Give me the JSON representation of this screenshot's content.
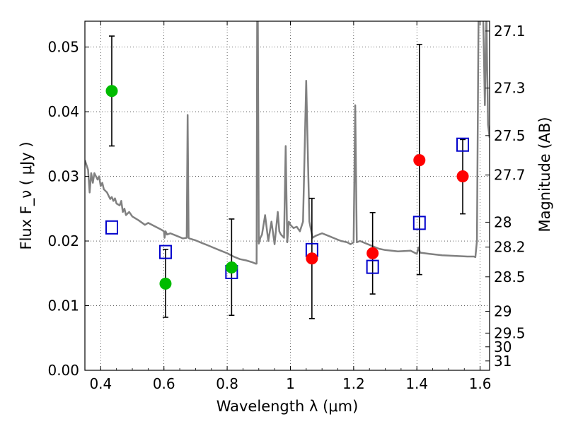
{
  "chart_data": {
    "type": "scatter",
    "xlabel": "Wavelength  λ (μm)",
    "ylabel": "Flux  F_ν  ( μJy )",
    "ylabel_right": "Magnitude (AB)",
    "xlim": [
      0.35,
      1.63
    ],
    "ylim": [
      0.0,
      0.054
    ],
    "grid": true,
    "x_ticks": [
      0.4,
      0.6,
      0.8,
      1.0,
      1.2,
      1.4,
      1.6
    ],
    "x_tick_labels": [
      "0.4",
      "0.6",
      "0.8",
      "1",
      "1.2",
      "1.4",
      "1.6"
    ],
    "y_ticks": [
      0.0,
      0.01,
      0.02,
      0.03,
      0.04,
      0.05
    ],
    "y_tick_labels": [
      "0.00",
      "0.01",
      "0.02",
      "0.03",
      "0.04",
      "0.05"
    ],
    "mag_ticks": [
      27.1,
      27.3,
      27.5,
      27.7,
      28,
      28.2,
      28.5,
      29,
      29.5,
      30,
      31
    ],
    "mag_tick_labels": [
      "27.1",
      "27.3",
      "27.5",
      "27.7",
      "28",
      "28.2",
      "28.5",
      "29",
      "29.5",
      "30",
      "31"
    ],
    "observed_points": [
      {
        "x": 0.435,
        "y": 0.0432,
        "yerr_low": 0.0347,
        "yerr_high": 0.0517,
        "color": "#00bb00"
      },
      {
        "x": 0.605,
        "y": 0.0134,
        "yerr_low": 0.0082,
        "yerr_high": 0.0187,
        "color": "#00bb00"
      },
      {
        "x": 0.814,
        "y": 0.0159,
        "yerr_low": 0.0085,
        "yerr_high": 0.0234,
        "color": "#00bb00"
      },
      {
        "x": 1.068,
        "y": 0.0173,
        "yerr_low": 0.008,
        "yerr_high": 0.0266,
        "color": "#ff0000"
      },
      {
        "x": 1.26,
        "y": 0.0181,
        "yerr_low": 0.0118,
        "yerr_high": 0.0244,
        "color": "#ff0000"
      },
      {
        "x": 1.408,
        "y": 0.0325,
        "yerr_low": 0.0148,
        "yerr_high": 0.0504,
        "color": "#ff0000"
      },
      {
        "x": 1.545,
        "y": 0.03,
        "yerr_low": 0.0242,
        "yerr_high": 0.0357,
        "color": "#ff0000"
      }
    ],
    "model_points": [
      {
        "x": 0.435,
        "y": 0.0221
      },
      {
        "x": 0.605,
        "y": 0.0183
      },
      {
        "x": 0.814,
        "y": 0.0152
      },
      {
        "x": 1.068,
        "y": 0.0186
      },
      {
        "x": 1.26,
        "y": 0.016
      },
      {
        "x": 1.408,
        "y": 0.0228
      },
      {
        "x": 1.545,
        "y": 0.0349
      }
    ],
    "model_spectrum": {
      "color": "#808080",
      "x": [
        0.35,
        0.36,
        0.365,
        0.37,
        0.375,
        0.38,
        0.39,
        0.395,
        0.4,
        0.405,
        0.41,
        0.42,
        0.425,
        0.43,
        0.435,
        0.44,
        0.445,
        0.45,
        0.46,
        0.465,
        0.47,
        0.475,
        0.48,
        0.49,
        0.5,
        0.52,
        0.54,
        0.55,
        0.57,
        0.59,
        0.6,
        0.602,
        0.605,
        0.61,
        0.62,
        0.64,
        0.66,
        0.672,
        0.675,
        0.678,
        0.68,
        0.7,
        0.72,
        0.74,
        0.76,
        0.78,
        0.8,
        0.82,
        0.84,
        0.86,
        0.88,
        0.89,
        0.893,
        0.895,
        0.897,
        0.9,
        0.905,
        0.91,
        0.92,
        0.93,
        0.94,
        0.95,
        0.96,
        0.965,
        0.97,
        0.98,
        0.985,
        0.99,
        0.995,
        1.0,
        1.01,
        1.02,
        1.03,
        1.04,
        1.045,
        1.05,
        1.055,
        1.06,
        1.07,
        1.08,
        1.1,
        1.12,
        1.14,
        1.16,
        1.18,
        1.19,
        1.2,
        1.205,
        1.21,
        1.22,
        1.24,
        1.26,
        1.28,
        1.3,
        1.34,
        1.38,
        1.4,
        1.405,
        1.41,
        1.44,
        1.48,
        1.52,
        1.56,
        1.58,
        1.585,
        1.59,
        1.595,
        1.6,
        1.61,
        1.615,
        1.62,
        1.625,
        1.63
      ],
      "y": [
        0.0325,
        0.031,
        0.0275,
        0.0305,
        0.029,
        0.0305,
        0.0295,
        0.03,
        0.0285,
        0.029,
        0.028,
        0.0275,
        0.027,
        0.0265,
        0.0268,
        0.0262,
        0.0266,
        0.0258,
        0.0255,
        0.0262,
        0.0245,
        0.025,
        0.024,
        0.0245,
        0.0238,
        0.0232,
        0.0225,
        0.0228,
        0.0223,
        0.0218,
        0.0215,
        0.0205,
        0.0215,
        0.021,
        0.0212,
        0.0208,
        0.0204,
        0.0205,
        0.0395,
        0.0205,
        0.0204,
        0.0201,
        0.0197,
        0.0193,
        0.0189,
        0.0185,
        0.0181,
        0.0176,
        0.0172,
        0.017,
        0.0167,
        0.0165,
        0.0165,
        0.055,
        0.055,
        0.0196,
        0.0205,
        0.021,
        0.024,
        0.02,
        0.023,
        0.0195,
        0.0245,
        0.0215,
        0.021,
        0.0205,
        0.0347,
        0.0198,
        0.023,
        0.0225,
        0.022,
        0.0222,
        0.0215,
        0.023,
        0.034,
        0.0448,
        0.034,
        0.023,
        0.0205,
        0.0208,
        0.0212,
        0.0208,
        0.0204,
        0.02,
        0.0198,
        0.0195,
        0.0198,
        0.041,
        0.0198,
        0.02,
        0.0196,
        0.0192,
        0.0188,
        0.0186,
        0.0184,
        0.0185,
        0.018,
        0.019,
        0.0182,
        0.018,
        0.0178,
        0.0177,
        0.0176,
        0.0176,
        0.0175,
        0.02,
        0.055,
        0.055,
        0.054,
        0.041,
        0.055,
        0.038,
        0.036
      ]
    }
  }
}
